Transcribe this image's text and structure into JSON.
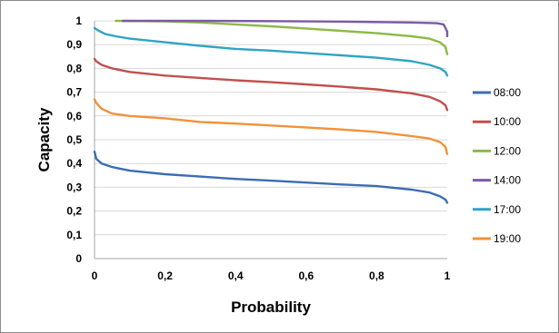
{
  "chart_data": {
    "type": "line",
    "title": "",
    "xlabel": "Probability",
    "ylabel": "Capacity",
    "xlim": [
      0,
      1
    ],
    "ylim": [
      0,
      1
    ],
    "x_ticks": [
      "0",
      "0,2",
      "0,4",
      "0,6",
      "0,8",
      "1"
    ],
    "x_tick_values": [
      0,
      0.2,
      0.4,
      0.6,
      0.8,
      1
    ],
    "y_ticks": [
      "0",
      "0,1",
      "0,2",
      "0,3",
      "0,4",
      "0,5",
      "0,6",
      "0,7",
      "0,8",
      "0,9",
      "1"
    ],
    "y_tick_values": [
      0,
      0.1,
      0.2,
      0.3,
      0.4,
      0.5,
      0.6,
      0.7,
      0.8,
      0.9,
      1
    ],
    "grid": "horizontal",
    "legend_position": "right",
    "series": [
      {
        "name": "08:00",
        "color": "#3b6db3",
        "points": [
          [
            0,
            0.45
          ],
          [
            0.005,
            0.42
          ],
          [
            0.02,
            0.4
          ],
          [
            0.05,
            0.385
          ],
          [
            0.1,
            0.37
          ],
          [
            0.2,
            0.355
          ],
          [
            0.3,
            0.345
          ],
          [
            0.4,
            0.335
          ],
          [
            0.5,
            0.328
          ],
          [
            0.6,
            0.32
          ],
          [
            0.7,
            0.312
          ],
          [
            0.8,
            0.305
          ],
          [
            0.9,
            0.29
          ],
          [
            0.95,
            0.278
          ],
          [
            0.98,
            0.262
          ],
          [
            0.995,
            0.248
          ],
          [
            1,
            0.235
          ]
        ]
      },
      {
        "name": "10:00",
        "color": "#c0504d",
        "points": [
          [
            0,
            0.84
          ],
          [
            0.005,
            0.83
          ],
          [
            0.02,
            0.815
          ],
          [
            0.05,
            0.8
          ],
          [
            0.1,
            0.785
          ],
          [
            0.2,
            0.77
          ],
          [
            0.3,
            0.76
          ],
          [
            0.4,
            0.75
          ],
          [
            0.5,
            0.742
          ],
          [
            0.6,
            0.733
          ],
          [
            0.7,
            0.723
          ],
          [
            0.8,
            0.712
          ],
          [
            0.9,
            0.695
          ],
          [
            0.95,
            0.68
          ],
          [
            0.98,
            0.662
          ],
          [
            0.995,
            0.645
          ],
          [
            1,
            0.625
          ]
        ]
      },
      {
        "name": "12:00",
        "color": "#8dba45",
        "points": [
          [
            0.06,
            1.0
          ],
          [
            0.2,
            0.998
          ],
          [
            0.3,
            0.993
          ],
          [
            0.4,
            0.985
          ],
          [
            0.5,
            0.977
          ],
          [
            0.6,
            0.968
          ],
          [
            0.7,
            0.958
          ],
          [
            0.8,
            0.948
          ],
          [
            0.9,
            0.935
          ],
          [
            0.95,
            0.925
          ],
          [
            0.98,
            0.91
          ],
          [
            0.995,
            0.89
          ],
          [
            1,
            0.86
          ]
        ]
      },
      {
        "name": "14:00",
        "color": "#7b5aa6",
        "points": [
          [
            0.08,
            1.0
          ],
          [
            0.3,
            1.0
          ],
          [
            0.5,
            0.999
          ],
          [
            0.7,
            0.997
          ],
          [
            0.9,
            0.993
          ],
          [
            0.97,
            0.99
          ],
          [
            0.99,
            0.985
          ],
          [
            1,
            0.955
          ],
          [
            1,
            0.935
          ]
        ]
      },
      {
        "name": "17:00",
        "color": "#31a4c2",
        "points": [
          [
            0,
            0.97
          ],
          [
            0.01,
            0.96
          ],
          [
            0.03,
            0.945
          ],
          [
            0.06,
            0.935
          ],
          [
            0.1,
            0.925
          ],
          [
            0.2,
            0.91
          ],
          [
            0.3,
            0.895
          ],
          [
            0.4,
            0.882
          ],
          [
            0.5,
            0.875
          ],
          [
            0.6,
            0.865
          ],
          [
            0.7,
            0.855
          ],
          [
            0.8,
            0.845
          ],
          [
            0.9,
            0.83
          ],
          [
            0.95,
            0.815
          ],
          [
            0.98,
            0.8
          ],
          [
            0.995,
            0.785
          ],
          [
            1,
            0.77
          ]
        ]
      },
      {
        "name": "19:00",
        "color": "#f0923a",
        "points": [
          [
            0,
            0.67
          ],
          [
            0.005,
            0.655
          ],
          [
            0.02,
            0.63
          ],
          [
            0.05,
            0.61
          ],
          [
            0.1,
            0.6
          ],
          [
            0.2,
            0.59
          ],
          [
            0.3,
            0.575
          ],
          [
            0.4,
            0.568
          ],
          [
            0.5,
            0.56
          ],
          [
            0.6,
            0.552
          ],
          [
            0.7,
            0.543
          ],
          [
            0.8,
            0.533
          ],
          [
            0.9,
            0.515
          ],
          [
            0.95,
            0.505
          ],
          [
            0.98,
            0.49
          ],
          [
            0.995,
            0.47
          ],
          [
            1,
            0.44
          ]
        ]
      }
    ]
  }
}
